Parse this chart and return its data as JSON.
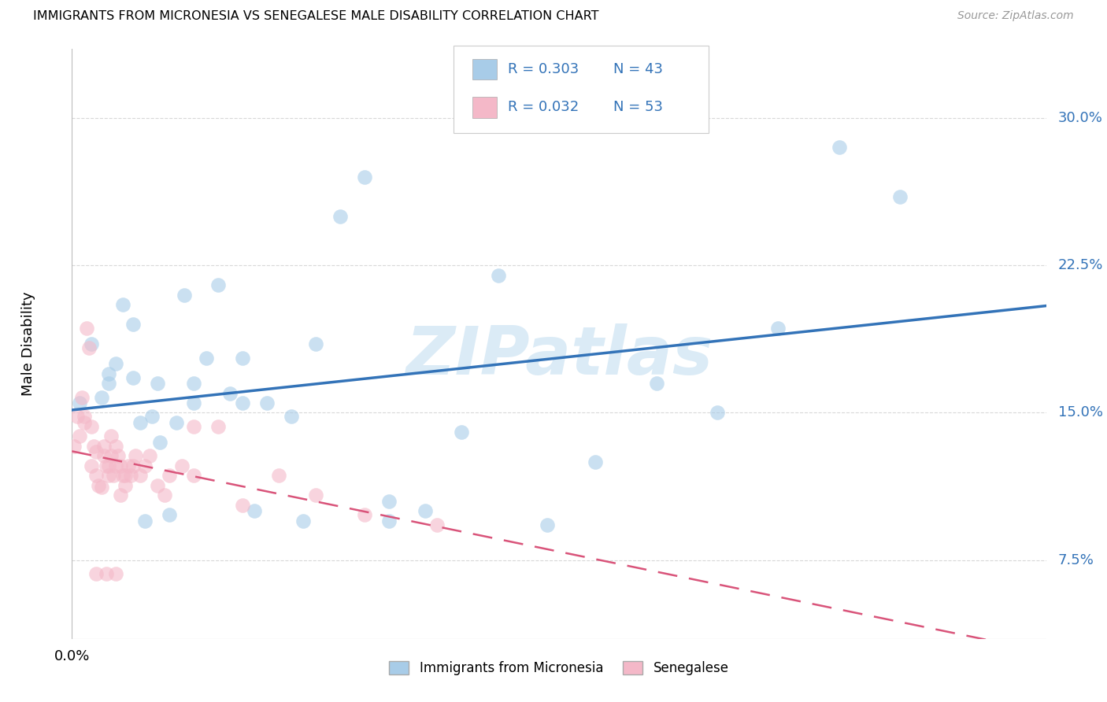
{
  "title": "IMMIGRANTS FROM MICRONESIA VS SENEGALESE MALE DISABILITY CORRELATION CHART",
  "source": "Source: ZipAtlas.com",
  "ylabel": "Male Disability",
  "ytick_labels": [
    "7.5%",
    "15.0%",
    "22.5%",
    "30.0%"
  ],
  "ytick_vals": [
    0.075,
    0.15,
    0.225,
    0.3
  ],
  "xlim": [
    0.0,
    0.4
  ],
  "ylim": [
    0.035,
    0.335
  ],
  "legend1_r": "R = 0.303",
  "legend1_n": "N = 43",
  "legend2_r": "R = 0.032",
  "legend2_n": "N = 53",
  "series1_label": "Immigrants from Micronesia",
  "series2_label": "Senegalese",
  "color1": "#a8cce8",
  "color2": "#f4b8c8",
  "trendline1_color": "#3373b8",
  "trendline2_color": "#d9547a",
  "legend_r_color": "#3373b8",
  "legend_n_color": "#3373b8",
  "bg_color": "#ffffff",
  "grid_color": "#d8d8d8",
  "watermark": "ZIPatlas",
  "watermark_color": "#d5e8f5",
  "micronesia_x": [
    0.003,
    0.008,
    0.012,
    0.015,
    0.018,
    0.021,
    0.025,
    0.028,
    0.03,
    0.033,
    0.036,
    0.04,
    0.043,
    0.046,
    0.05,
    0.055,
    0.06,
    0.065,
    0.07,
    0.075,
    0.08,
    0.09,
    0.1,
    0.11,
    0.12,
    0.13,
    0.145,
    0.16,
    0.175,
    0.195,
    0.215,
    0.24,
    0.265,
    0.29,
    0.315,
    0.34,
    0.015,
    0.025,
    0.035,
    0.05,
    0.07,
    0.095,
    0.13
  ],
  "micronesia_y": [
    0.155,
    0.185,
    0.158,
    0.165,
    0.175,
    0.205,
    0.168,
    0.145,
    0.095,
    0.148,
    0.135,
    0.098,
    0.145,
    0.21,
    0.165,
    0.178,
    0.215,
    0.16,
    0.178,
    0.1,
    0.155,
    0.148,
    0.185,
    0.25,
    0.27,
    0.105,
    0.1,
    0.14,
    0.22,
    0.093,
    0.125,
    0.165,
    0.15,
    0.193,
    0.285,
    0.26,
    0.17,
    0.195,
    0.165,
    0.155,
    0.155,
    0.095,
    0.095
  ],
  "senegalese_x": [
    0.001,
    0.002,
    0.003,
    0.004,
    0.005,
    0.005,
    0.006,
    0.007,
    0.008,
    0.008,
    0.009,
    0.01,
    0.01,
    0.011,
    0.012,
    0.013,
    0.013,
    0.014,
    0.015,
    0.015,
    0.016,
    0.016,
    0.017,
    0.018,
    0.018,
    0.019,
    0.02,
    0.02,
    0.021,
    0.022,
    0.023,
    0.024,
    0.025,
    0.026,
    0.028,
    0.03,
    0.032,
    0.035,
    0.038,
    0.04,
    0.045,
    0.05,
    0.06,
    0.07,
    0.085,
    0.1,
    0.12,
    0.15,
    0.01,
    0.014,
    0.018,
    0.022,
    0.05
  ],
  "senegalese_y": [
    0.133,
    0.148,
    0.138,
    0.158,
    0.148,
    0.145,
    0.193,
    0.183,
    0.143,
    0.123,
    0.133,
    0.118,
    0.13,
    0.113,
    0.112,
    0.128,
    0.133,
    0.123,
    0.123,
    0.118,
    0.138,
    0.128,
    0.118,
    0.123,
    0.133,
    0.128,
    0.123,
    0.108,
    0.118,
    0.113,
    0.123,
    0.118,
    0.123,
    0.128,
    0.118,
    0.123,
    0.128,
    0.113,
    0.108,
    0.118,
    0.123,
    0.118,
    0.143,
    0.103,
    0.118,
    0.108,
    0.098,
    0.093,
    0.068,
    0.068,
    0.068,
    0.118,
    0.143
  ]
}
